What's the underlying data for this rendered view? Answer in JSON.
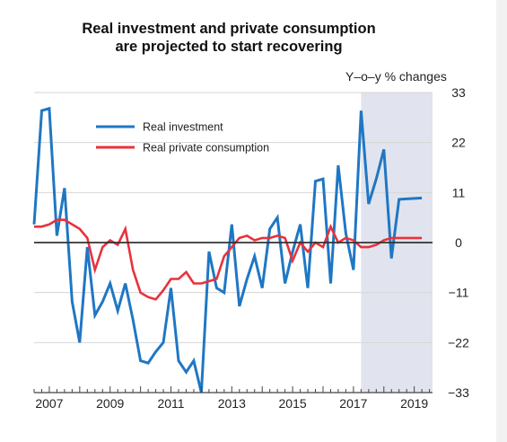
{
  "chart_data": {
    "type": "line",
    "title_line1": "Real investment and private consumption",
    "title_line2": "are projected to start recovering",
    "unit_label": "Y–o–y % changes",
    "y_ticks": [
      "33",
      "22",
      "11",
      "0",
      "−11",
      "−22",
      "−33"
    ],
    "y_tick_values": [
      33,
      22,
      11,
      0,
      -11,
      -22,
      -33
    ],
    "x_ticks": [
      "2007",
      "2009",
      "2011",
      "2013",
      "2015",
      "2017",
      "2019"
    ],
    "x_tick_values": [
      2007,
      2009,
      2011,
      2013,
      2015,
      2017,
      2019
    ],
    "ylim": [
      -33,
      33
    ],
    "xlim": [
      2006.5,
      2019.6
    ],
    "projection_start": 2017.25,
    "grid": true,
    "legend_placement": "top-left",
    "series": [
      {
        "name": "Real investment",
        "color": "#1f77c4",
        "points": [
          [
            2006.5,
            4
          ],
          [
            2006.75,
            29
          ],
          [
            2007.0,
            29.5
          ],
          [
            2007.25,
            1.5
          ],
          [
            2007.5,
            12
          ],
          [
            2007.75,
            -13
          ],
          [
            2008.0,
            -22
          ],
          [
            2008.25,
            -1
          ],
          [
            2008.5,
            -16
          ],
          [
            2008.75,
            -13
          ],
          [
            2009.0,
            -9
          ],
          [
            2009.25,
            -15
          ],
          [
            2009.5,
            -9
          ],
          [
            2009.75,
            -17
          ],
          [
            2010.0,
            -26
          ],
          [
            2010.25,
            -26.5
          ],
          [
            2010.5,
            -24
          ],
          [
            2010.75,
            -22
          ],
          [
            2011.0,
            -10
          ],
          [
            2011.25,
            -26
          ],
          [
            2011.5,
            -28.5
          ],
          [
            2011.75,
            -26
          ],
          [
            2012.0,
            -33
          ],
          [
            2012.25,
            -2
          ],
          [
            2012.5,
            -10
          ],
          [
            2012.75,
            -11
          ],
          [
            2013.0,
            4
          ],
          [
            2013.25,
            -14
          ],
          [
            2013.5,
            -8
          ],
          [
            2013.75,
            -3
          ],
          [
            2014.0,
            -10
          ],
          [
            2014.25,
            3
          ],
          [
            2014.5,
            5.5
          ],
          [
            2014.75,
            -9
          ],
          [
            2015.0,
            -2
          ],
          [
            2015.25,
            4
          ],
          [
            2015.5,
            -10
          ],
          [
            2015.75,
            13.5
          ],
          [
            2016.0,
            14
          ],
          [
            2016.25,
            -9
          ],
          [
            2016.5,
            17
          ],
          [
            2016.75,
            2
          ],
          [
            2017.0,
            -6
          ],
          [
            2017.25,
            29
          ],
          [
            2017.5,
            8.5
          ],
          [
            2017.75,
            14
          ],
          [
            2018.0,
            20.5
          ],
          [
            2018.25,
            -3.5
          ],
          [
            2018.5,
            9.5
          ],
          [
            2018.75,
            9.6
          ],
          [
            2019.0,
            9.7
          ],
          [
            2019.25,
            9.8
          ]
        ]
      },
      {
        "name": "Real private consumption",
        "color": "#e8323c",
        "points": [
          [
            2006.5,
            3.5
          ],
          [
            2006.75,
            3.5
          ],
          [
            2007.0,
            4
          ],
          [
            2007.25,
            5
          ],
          [
            2007.5,
            5
          ],
          [
            2007.75,
            4
          ],
          [
            2008.0,
            3
          ],
          [
            2008.25,
            1
          ],
          [
            2008.5,
            -6
          ],
          [
            2008.75,
            -1
          ],
          [
            2009.0,
            0.5
          ],
          [
            2009.25,
            -0.5
          ],
          [
            2009.5,
            3
          ],
          [
            2009.75,
            -6
          ],
          [
            2010.0,
            -11
          ],
          [
            2010.25,
            -12
          ],
          [
            2010.5,
            -12.5
          ],
          [
            2010.75,
            -10.5
          ],
          [
            2011.0,
            -8
          ],
          [
            2011.25,
            -8
          ],
          [
            2011.5,
            -6.5
          ],
          [
            2011.75,
            -9
          ],
          [
            2012.0,
            -9
          ],
          [
            2012.25,
            -8.5
          ],
          [
            2012.5,
            -8
          ],
          [
            2012.75,
            -3
          ],
          [
            2013.0,
            -1
          ],
          [
            2013.25,
            1
          ],
          [
            2013.5,
            1.5
          ],
          [
            2013.75,
            0.5
          ],
          [
            2014.0,
            1
          ],
          [
            2014.25,
            1
          ],
          [
            2014.5,
            1.5
          ],
          [
            2014.75,
            1
          ],
          [
            2015.0,
            -4
          ],
          [
            2015.25,
            0
          ],
          [
            2015.5,
            -2
          ],
          [
            2015.75,
            0
          ],
          [
            2016.0,
            -1
          ],
          [
            2016.25,
            3.5
          ],
          [
            2016.5,
            0
          ],
          [
            2016.75,
            1
          ],
          [
            2017.0,
            0.5
          ],
          [
            2017.25,
            -1
          ],
          [
            2017.5,
            -1
          ],
          [
            2017.75,
            -0.5
          ],
          [
            2018.0,
            0.5
          ],
          [
            2018.25,
            1
          ],
          [
            2018.5,
            1
          ],
          [
            2018.75,
            1
          ],
          [
            2019.0,
            1
          ],
          [
            2019.25,
            1
          ]
        ]
      }
    ]
  }
}
